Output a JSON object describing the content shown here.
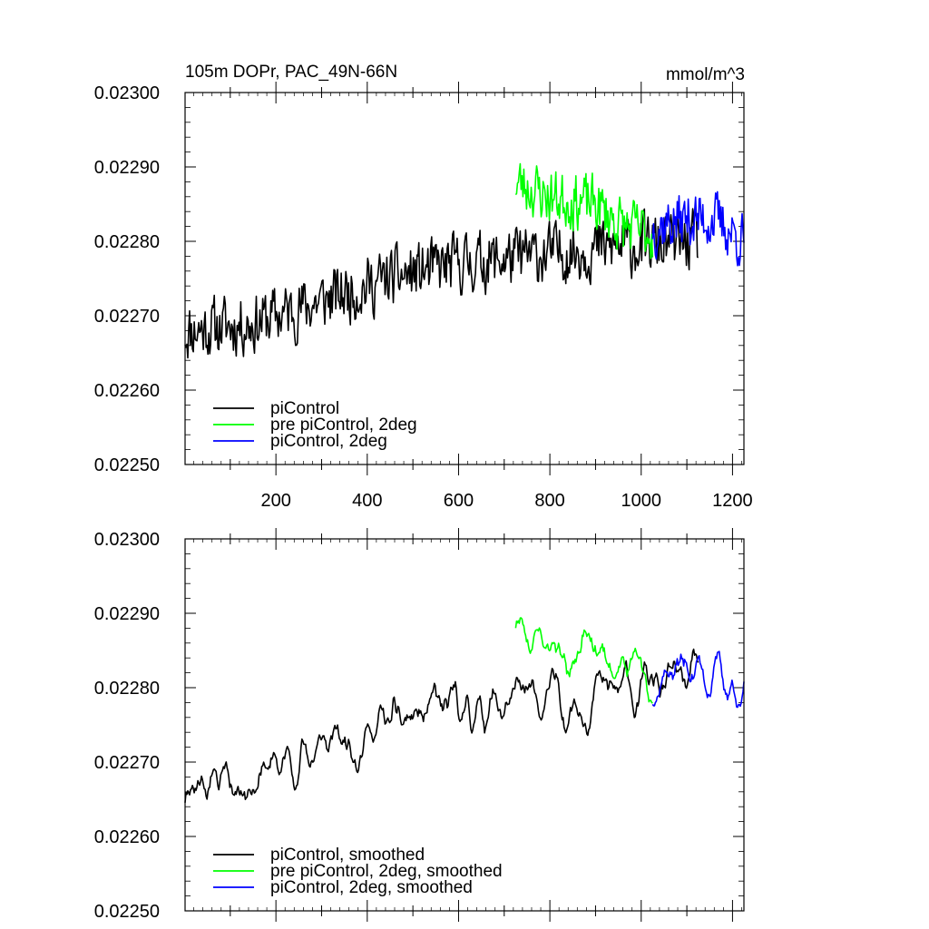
{
  "chart_data": [
    {
      "type": "line",
      "title": "105m DOPr, PAC_49N-66N",
      "units": "mmol/m^3",
      "xlim": [
        1,
        1225
      ],
      "ylim": [
        0.0225,
        0.023
      ],
      "x_ticks": [
        "200",
        "400",
        "600",
        "800",
        "1000",
        "1200"
      ],
      "x_tick_values": [
        200,
        400,
        600,
        800,
        1000,
        1200
      ],
      "y_ticks": [
        "0.02250",
        "0.02260",
        "0.02270",
        "0.02280",
        "0.02290",
        "0.02300"
      ],
      "y_tick_values": [
        0.0225,
        0.0226,
        0.0227,
        0.0228,
        0.0229,
        0.023
      ],
      "legend_position": "bottom-left",
      "series": [
        {
          "name": "piControl",
          "color": "#000000",
          "x_range": [
            1,
            1125
          ],
          "trend": [
            [
              1,
              0.02268
            ],
            [
              150,
              0.02269
            ],
            [
              300,
              0.02272
            ],
            [
              450,
              0.02275
            ],
            [
              600,
              0.02277
            ],
            [
              750,
              0.02278
            ],
            [
              900,
              0.02279
            ],
            [
              1125,
              0.0228
            ]
          ],
          "noise": 3.6e-05,
          "seed": 11
        },
        {
          "name": "pre piControl, 2deg",
          "color": "#00ff00",
          "x_range": [
            725,
            1025
          ],
          "trend": [
            [
              725,
              0.02288
            ],
            [
              800,
              0.02286
            ],
            [
              900,
              0.02285
            ],
            [
              960,
              0.02282
            ],
            [
              1025,
              0.02281
            ]
          ],
          "noise": 3.4e-05,
          "seed": 23
        },
        {
          "name": "piControl, 2deg",
          "color": "#0000ff",
          "x_range": [
            1025,
            1225
          ],
          "trend": [
            [
              1025,
              0.02282
            ],
            [
              1100,
              0.02283
            ],
            [
              1160,
              0.02283
            ],
            [
              1225,
              0.0228
            ]
          ],
          "noise": 3.4e-05,
          "seed": 37
        }
      ]
    },
    {
      "type": "line",
      "title": "",
      "xlim": [
        1,
        1225
      ],
      "ylim": [
        0.0225,
        0.023
      ],
      "y_ticks": [
        "0.02250",
        "0.02260",
        "0.02270",
        "0.02280",
        "0.02290",
        "0.02300"
      ],
      "y_tick_values": [
        0.0225,
        0.0226,
        0.0227,
        0.0228,
        0.0229,
        0.023
      ],
      "legend_position": "bottom-left",
      "series": [
        {
          "name": "piControl, smoothed",
          "color": "#000000",
          "x_range": [
            1,
            1125
          ],
          "trend": [
            [
              1,
              0.02268
            ],
            [
              150,
              0.02268
            ],
            [
              300,
              0.02272
            ],
            [
              450,
              0.02275
            ],
            [
              600,
              0.02277
            ],
            [
              750,
              0.02278
            ],
            [
              900,
              0.02279
            ],
            [
              1125,
              0.02281
            ]
          ],
          "noise": 3e-05,
          "seed": 11,
          "smooth": 4
        },
        {
          "name": "pre piControl, 2deg, smoothed",
          "color": "#00ff00",
          "x_range": [
            725,
            1025
          ],
          "trend": [
            [
              725,
              0.02289
            ],
            [
              800,
              0.02286
            ],
            [
              900,
              0.02285
            ],
            [
              960,
              0.02282
            ],
            [
              1025,
              0.02281
            ]
          ],
          "noise": 2.8e-05,
          "seed": 23,
          "smooth": 4
        },
        {
          "name": "piControl, 2deg, smoothed",
          "color": "#0000ff",
          "x_range": [
            1025,
            1225
          ],
          "trend": [
            [
              1025,
              0.02282
            ],
            [
              1100,
              0.02283
            ],
            [
              1160,
              0.02282
            ],
            [
              1225,
              0.02279
            ]
          ],
          "noise": 2.8e-05,
          "seed": 37,
          "smooth": 4
        }
      ]
    }
  ]
}
